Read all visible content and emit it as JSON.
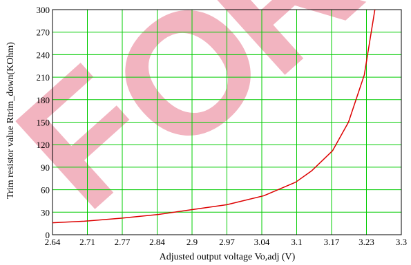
{
  "chart_data": {
    "type": "line",
    "xlabel": "Adjusted output voltage Vo,adj (V)",
    "ylabel": "Trim resistor value Rtrim_down(KOhm)",
    "xlim": [
      2.64,
      3.3
    ],
    "ylim": [
      0,
      300
    ],
    "x_ticks": [
      "2.64",
      "2.71",
      "2.77",
      "2.84",
      "2.9",
      "2.97",
      "3.04",
      "3.1",
      "3.17",
      "3.23",
      "3.3"
    ],
    "y_ticks": [
      "0",
      "30",
      "60",
      "90",
      "120",
      "150",
      "180",
      "210",
      "240",
      "270",
      "300"
    ],
    "grid": true,
    "series": [
      {
        "color": "#dd0000",
        "x": [
          2.64,
          2.7,
          2.77,
          2.84,
          2.9,
          2.97,
          3.04,
          3.1,
          3.13,
          3.17,
          3.2,
          3.23,
          3.25
        ],
        "y": [
          16,
          18,
          22,
          27,
          33,
          40,
          52,
          70,
          85,
          112,
          150,
          213,
          300
        ]
      }
    ],
    "colors": {
      "grid": "#00cc00",
      "frame": "#000000",
      "watermark": "#f2b4c0"
    }
  },
  "watermark": {
    "text": "FOR",
    "letters": [
      "F",
      "O",
      "R"
    ]
  }
}
